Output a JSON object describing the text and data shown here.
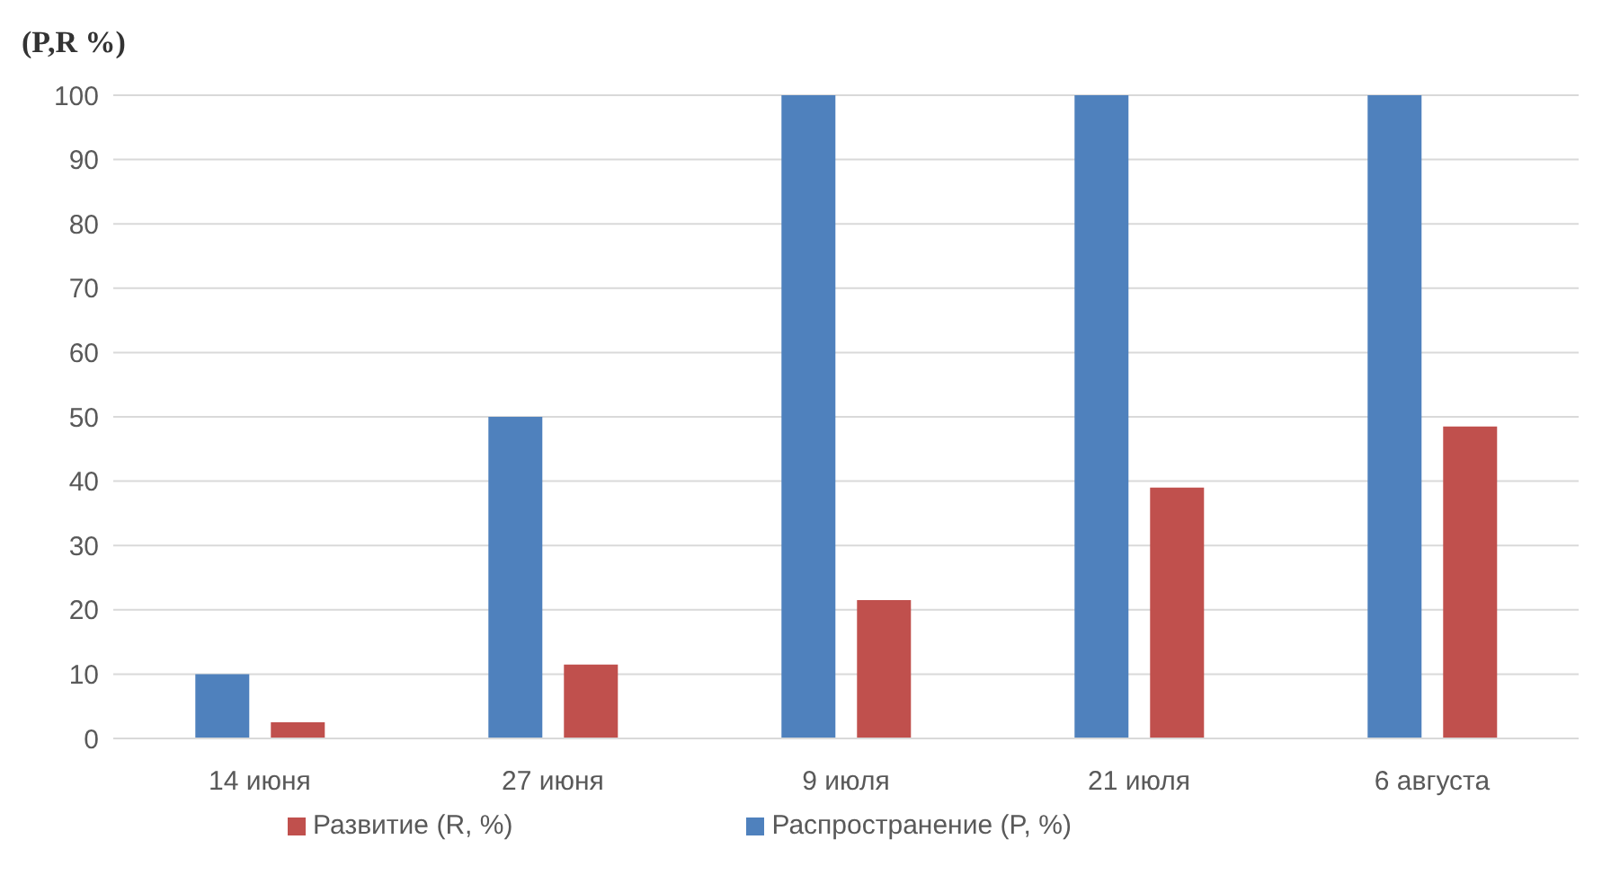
{
  "chart_data": {
    "type": "bar",
    "ylabel": "(P,R %)",
    "categories": [
      "14 июня",
      "27 июня",
      "9 июля",
      "21 июля",
      "6 августа"
    ],
    "series": [
      {
        "name": "Распространение (P, %)",
        "color": "#4f81bd",
        "values": [
          10,
          50,
          100,
          100,
          100
        ]
      },
      {
        "name": "Развитие (R, %)",
        "color": "#c0504d",
        "values": [
          2.5,
          11.5,
          21.5,
          39,
          48.5
        ]
      }
    ],
    "ylim": [
      0,
      100
    ],
    "yticks": [
      0,
      10,
      20,
      30,
      40,
      50,
      60,
      70,
      80,
      90,
      100
    ],
    "grid": "y",
    "legend": "bottom"
  }
}
